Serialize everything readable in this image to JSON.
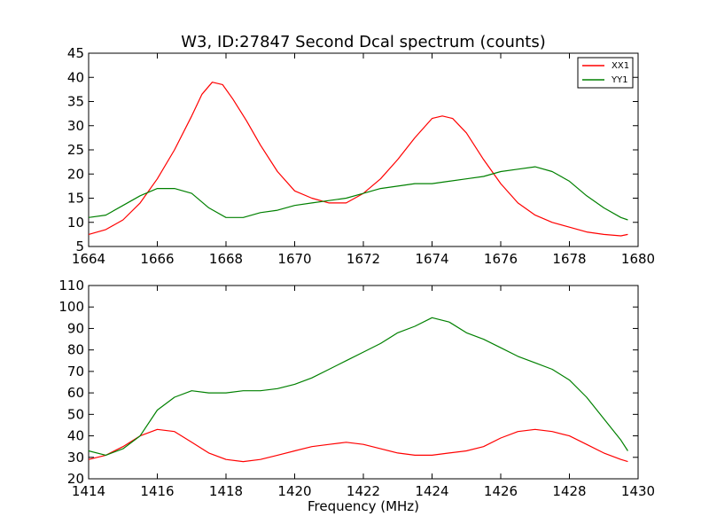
{
  "title": "W3, ID:27847 Second Dcal spectrum (counts)",
  "xlabel": "Frequency (MHz)",
  "colors": {
    "XX1": "#ff0000",
    "YY1": "#008000"
  },
  "chart_data": [
    {
      "type": "line",
      "title": "W3, ID:27847 Second Dcal spectrum (counts)",
      "xlabel": "",
      "ylabel": "",
      "xlim": [
        1664,
        1680
      ],
      "ylim": [
        5,
        45
      ],
      "xticks": [
        "1664",
        "1666",
        "1668",
        "1670",
        "1672",
        "1674",
        "1676",
        "1678",
        "1680"
      ],
      "yticks": [
        "5",
        "10",
        "15",
        "20",
        "25",
        "30",
        "35",
        "40",
        "45"
      ],
      "grid": false,
      "legend": {
        "placement": "top-right",
        "entries": [
          "XX1",
          "YY1"
        ]
      },
      "series": [
        {
          "name": "XX1",
          "color": "#ff0000",
          "x": [
            1664.0,
            1664.5,
            1665.0,
            1665.5,
            1666.0,
            1666.5,
            1667.0,
            1667.3,
            1667.6,
            1667.9,
            1668.2,
            1668.6,
            1669.0,
            1669.5,
            1670.0,
            1670.5,
            1671.0,
            1671.5,
            1672.0,
            1672.5,
            1673.0,
            1673.5,
            1674.0,
            1674.3,
            1674.6,
            1675.0,
            1675.5,
            1676.0,
            1676.5,
            1677.0,
            1677.5,
            1678.0,
            1678.5,
            1679.0,
            1679.5,
            1679.7
          ],
          "y": [
            7.5,
            8.5,
            10.5,
            14.0,
            19.0,
            25.0,
            32.0,
            36.5,
            39.0,
            38.5,
            35.5,
            31.0,
            26.0,
            20.5,
            16.5,
            15.0,
            14.0,
            14.0,
            16.0,
            19.0,
            23.0,
            27.5,
            31.5,
            32.0,
            31.5,
            28.5,
            23.0,
            18.0,
            14.0,
            11.5,
            10.0,
            9.0,
            8.0,
            7.5,
            7.2,
            7.5
          ]
        },
        {
          "name": "YY1",
          "color": "#008000",
          "x": [
            1664.0,
            1664.5,
            1665.0,
            1665.5,
            1666.0,
            1666.5,
            1667.0,
            1667.5,
            1668.0,
            1668.5,
            1669.0,
            1669.5,
            1670.0,
            1670.5,
            1671.0,
            1671.5,
            1672.0,
            1672.5,
            1673.0,
            1673.5,
            1674.0,
            1674.5,
            1675.0,
            1675.5,
            1676.0,
            1676.5,
            1677.0,
            1677.5,
            1678.0,
            1678.5,
            1679.0,
            1679.5,
            1679.7
          ],
          "y": [
            11.0,
            11.5,
            13.5,
            15.5,
            17.0,
            17.0,
            16.0,
            13.0,
            11.0,
            11.0,
            12.0,
            12.5,
            13.5,
            14.0,
            14.5,
            15.0,
            16.0,
            17.0,
            17.5,
            18.0,
            18.0,
            18.5,
            19.0,
            19.5,
            20.5,
            21.0,
            21.5,
            20.5,
            18.5,
            15.5,
            13.0,
            11.0,
            10.5
          ]
        }
      ]
    },
    {
      "type": "line",
      "title": "",
      "xlabel": "Frequency (MHz)",
      "ylabel": "",
      "xlim": [
        1414,
        1430
      ],
      "ylim": [
        20,
        110
      ],
      "xticks": [
        "1414",
        "1416",
        "1418",
        "1420",
        "1422",
        "1424",
        "1426",
        "1428",
        "1430"
      ],
      "yticks": [
        "20",
        "30",
        "40",
        "50",
        "60",
        "70",
        "80",
        "90",
        "100",
        "110"
      ],
      "grid": false,
      "series": [
        {
          "name": "",
          "color": "#ff0000",
          "x": [
            1414.0,
            1414.5,
            1415.0,
            1415.5,
            1416.0,
            1416.5,
            1417.0,
            1417.5,
            1418.0,
            1418.5,
            1419.0,
            1419.5,
            1420.0,
            1420.5,
            1421.0,
            1421.5,
            1422.0,
            1422.5,
            1423.0,
            1423.5,
            1424.0,
            1424.5,
            1425.0,
            1425.5,
            1426.0,
            1426.5,
            1427.0,
            1427.5,
            1428.0,
            1428.5,
            1429.0,
            1429.5,
            1429.7
          ],
          "y": [
            29,
            31,
            35,
            40,
            43,
            42,
            37,
            32,
            29,
            28,
            29,
            31,
            33,
            35,
            36,
            37,
            36,
            34,
            32,
            31,
            31,
            32,
            33,
            35,
            39,
            42,
            43,
            42,
            40,
            36,
            32,
            29,
            28
          ]
        },
        {
          "name": "",
          "color": "#008000",
          "x": [
            1414.0,
            1414.5,
            1415.0,
            1415.5,
            1416.0,
            1416.5,
            1417.0,
            1417.5,
            1418.0,
            1418.5,
            1419.0,
            1419.5,
            1420.0,
            1420.5,
            1421.0,
            1421.5,
            1422.0,
            1422.5,
            1423.0,
            1423.5,
            1424.0,
            1424.5,
            1425.0,
            1425.5,
            1426.0,
            1426.5,
            1427.0,
            1427.5,
            1428.0,
            1428.5,
            1429.0,
            1429.5,
            1429.7
          ],
          "y": [
            33,
            31,
            34,
            40,
            52,
            58,
            61,
            60,
            60,
            61,
            61,
            62,
            64,
            67,
            71,
            75,
            79,
            83,
            88,
            91,
            95,
            93,
            88,
            85,
            81,
            77,
            74,
            71,
            66,
            58,
            48,
            38,
            33
          ]
        }
      ]
    }
  ]
}
